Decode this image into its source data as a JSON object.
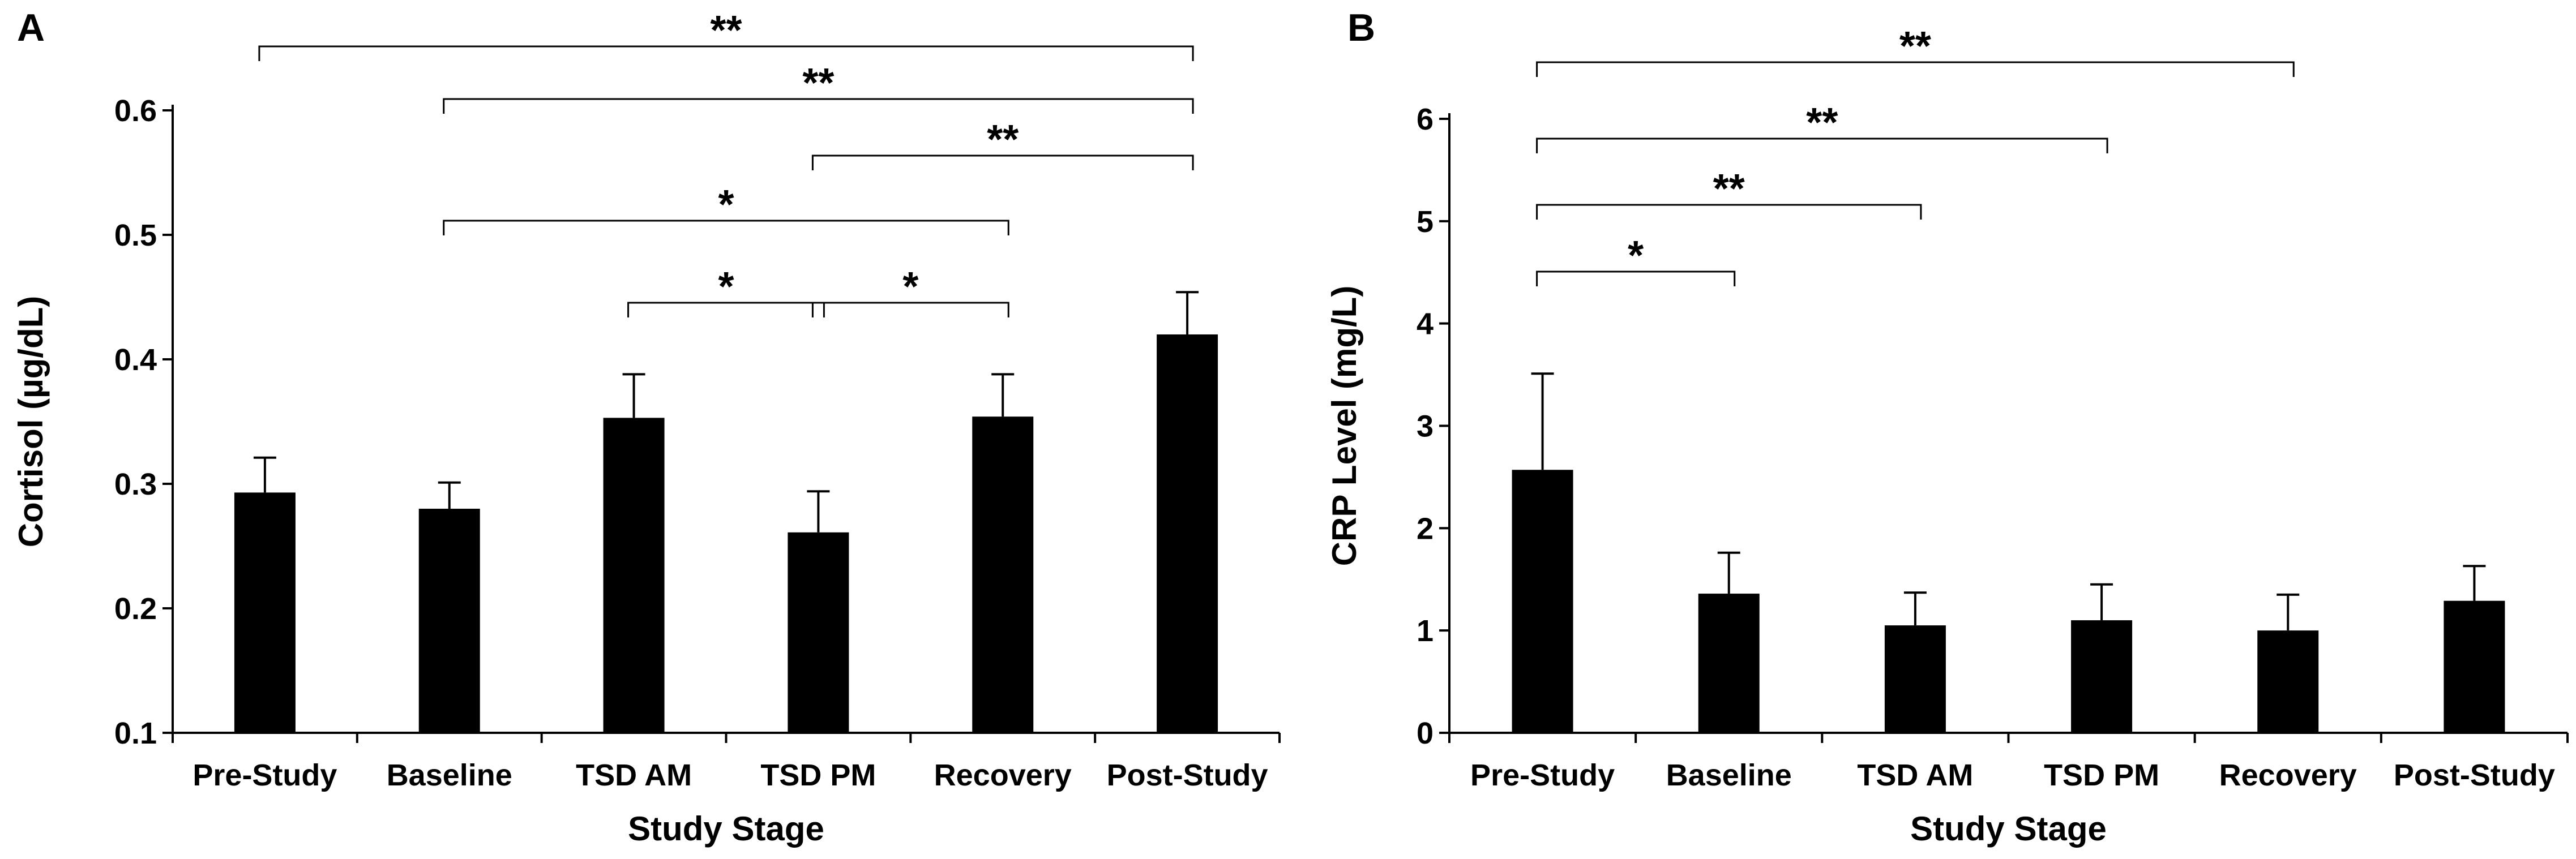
{
  "chart_data": [
    {
      "panel": "A",
      "type": "bar",
      "title": "",
      "xlabel": "Study Stage",
      "ylabel": "Cortisol (µg/dL)",
      "ylim": [
        0.1,
        0.6
      ],
      "yticks": [
        "0.1",
        "0.2",
        "0.3",
        "0.4",
        "0.5",
        "0.6"
      ],
      "categories": [
        "Pre-Study",
        "Baseline",
        "TSD AM",
        "TSD PM",
        "Recovery",
        "Post-Study"
      ],
      "values": [
        0.293,
        0.28,
        0.353,
        0.261,
        0.354,
        0.42
      ],
      "errors": [
        0.028,
        0.021,
        0.035,
        0.033,
        0.034,
        0.034
      ],
      "bar_color": "#000000",
      "significance": [
        {
          "from": "Pre-Study",
          "to": "Post-Study",
          "label": "**"
        },
        {
          "from": "Baseline",
          "to": "Post-Study",
          "label": "**"
        },
        {
          "from": "TSD PM",
          "to": "Post-Study",
          "label": "**"
        },
        {
          "from": "Baseline",
          "to": "Recovery",
          "label": "*"
        },
        {
          "from": "TSD AM",
          "to": "TSD PM",
          "label": "*"
        },
        {
          "from": "TSD PM",
          "to": "Recovery",
          "label": "*"
        }
      ]
    },
    {
      "panel": "B",
      "type": "bar",
      "title": "",
      "xlabel": "Study Stage",
      "ylabel": "CRP Level (mg/L)",
      "ylim": [
        0,
        6
      ],
      "yticks": [
        "0",
        "1",
        "2",
        "3",
        "4",
        "5",
        "6"
      ],
      "categories": [
        "Pre-Study",
        "Baseline",
        "TSD AM",
        "TSD PM",
        "Recovery",
        "Post-Study"
      ],
      "values": [
        2.57,
        1.36,
        1.05,
        1.1,
        1.0,
        1.29
      ],
      "errors": [
        0.94,
        0.4,
        0.32,
        0.35,
        0.35,
        0.34
      ],
      "bar_color": "#000000",
      "significance": [
        {
          "from": "Pre-Study",
          "to": "Recovery",
          "label": "**"
        },
        {
          "from": "Pre-Study",
          "to": "TSD PM",
          "label": "**"
        },
        {
          "from": "Pre-Study",
          "to": "TSD AM",
          "label": "**"
        },
        {
          "from": "Pre-Study",
          "to": "Baseline",
          "label": "*"
        }
      ]
    }
  ]
}
